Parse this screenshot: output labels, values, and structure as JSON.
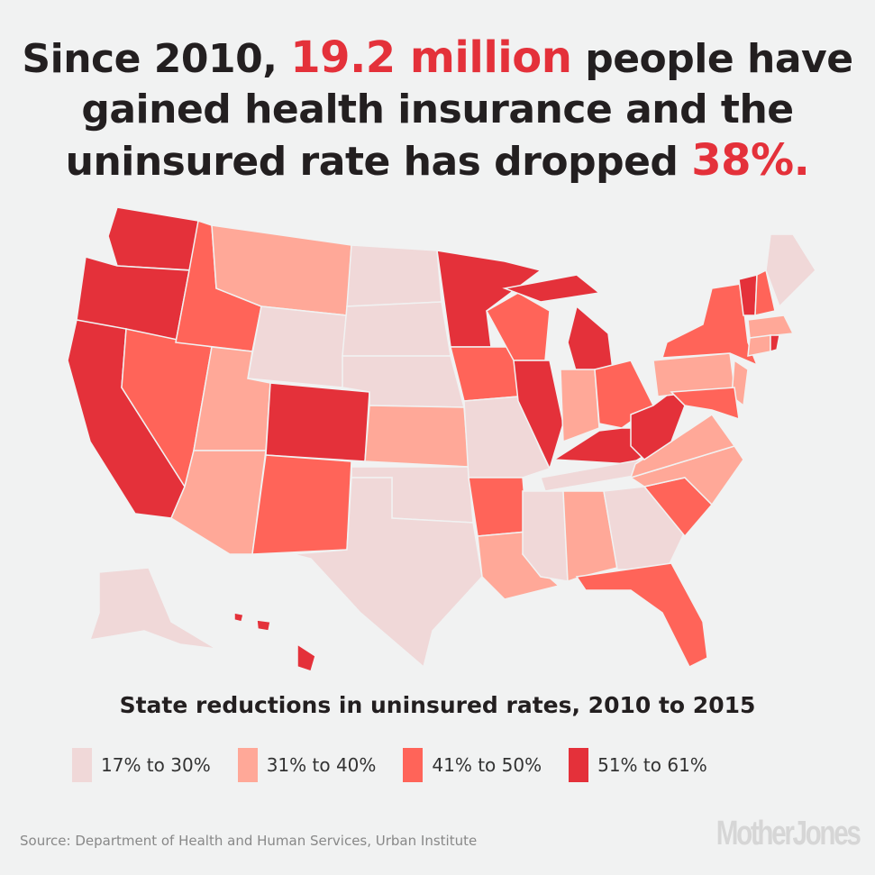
{
  "title": {
    "part1": "Since 2010, ",
    "highlight1": "19.2 million",
    "part2": " people have gained health insurance and the uninsured rate has dropped ",
    "highlight2": "38%."
  },
  "colors": {
    "background": "#f1f2f2",
    "accent": "#e4313a",
    "cat1": "#f0d8d8",
    "cat2": "#ffa898",
    "cat3": "#ff6459",
    "cat4": "#e4313a"
  },
  "map": {
    "subtitle": "State reductions in uninsured rates, 2010 to 2015",
    "legend": [
      {
        "label": "17% to 30%",
        "color": "#f0d8d8"
      },
      {
        "label": "31% to 40%",
        "color": "#ffa898"
      },
      {
        "label": "41% to 50%",
        "color": "#ff6459"
      },
      {
        "label": "51% to 61%",
        "color": "#e4313a"
      }
    ],
    "state_category": {
      "WA": 4,
      "OR": 4,
      "CA": 4,
      "NV": 3,
      "ID": 3,
      "MT": 2,
      "WY": 1,
      "UT": 2,
      "AZ": 2,
      "CO": 4,
      "NM": 3,
      "ND": 1,
      "SD": 1,
      "NE": 1,
      "KS": 2,
      "OK": 1,
      "TX": 1,
      "MN": 4,
      "IA": 3,
      "MO": 1,
      "AR": 3,
      "LA": 2,
      "WI": 3,
      "IL": 4,
      "MI": 4,
      "IN": 2,
      "OH": 3,
      "KY": 4,
      "TN": 1,
      "MS": 1,
      "AL": 2,
      "GA": 1,
      "FL": 3,
      "SC": 3,
      "NC": 2,
      "VA": 2,
      "WV": 4,
      "PA": 2,
      "NY": 3,
      "NJ": 2,
      "MD": 3,
      "VT": 4,
      "NH": 3,
      "ME": 1,
      "MA": 2,
      "CT": 2,
      "RI": 4,
      "AK": 1,
      "HI": 4
    }
  },
  "footer": {
    "source": "Source: Department of Health and Human Services, Urban Institute",
    "logo": "MotherJones"
  }
}
